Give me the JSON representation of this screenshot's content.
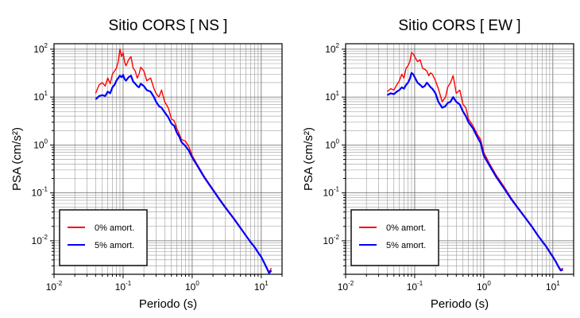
{
  "chart_data": [
    {
      "type": "line",
      "title": "Sitio CORS [ NS ]",
      "xlabel": "Periodo (s)",
      "ylabel": "PSA (cm/s²)",
      "xscale": "log",
      "yscale": "log",
      "xlim": [
        0.01,
        20
      ],
      "ylim": [
        0.002,
        130
      ],
      "grid": true,
      "legend_position": "bottom-left",
      "xticks": [
        {
          "base": "10",
          "exp": "-2"
        },
        {
          "base": "10",
          "exp": "-1"
        },
        {
          "base": "10",
          "exp": "0"
        },
        {
          "base": "10",
          "exp": "1"
        }
      ],
      "yticks": [
        {
          "base": "10",
          "exp": "-2",
          "value": 0.01
        },
        {
          "base": "10",
          "exp": "-1",
          "value": 0.1
        },
        {
          "base": "10",
          "exp": "0",
          "value": 1
        },
        {
          "base": "10",
          "exp": "1",
          "value": 10
        },
        {
          "base": "10",
          "exp": "2",
          "value": 100
        }
      ],
      "series": [
        {
          "name": "0% amort.",
          "color": "#ff0000",
          "x": [
            0.04,
            0.045,
            0.05,
            0.055,
            0.06,
            0.065,
            0.07,
            0.075,
            0.08,
            0.085,
            0.09,
            0.095,
            0.1,
            0.105,
            0.11,
            0.12,
            0.13,
            0.14,
            0.15,
            0.16,
            0.17,
            0.18,
            0.2,
            0.22,
            0.25,
            0.28,
            0.3,
            0.33,
            0.36,
            0.4,
            0.45,
            0.5,
            0.55,
            0.6,
            0.65,
            0.7,
            0.8,
            0.9,
            1.0,
            1.2,
            1.5,
            2.0,
            2.5,
            3.0,
            4.0,
            5.0,
            6.0,
            7.0,
            8.0,
            9.0,
            10.0,
            11.0,
            12.0,
            13.0,
            14.0
          ],
          "y": [
            12,
            18,
            20,
            17,
            25,
            19,
            30,
            35,
            40,
            55,
            100,
            70,
            85,
            55,
            45,
            60,
            70,
            40,
            35,
            25,
            30,
            42,
            35,
            22,
            25,
            15,
            12,
            10,
            14,
            8,
            6,
            3.5,
            3.2,
            2.2,
            1.7,
            1.3,
            1.2,
            0.9,
            0.6,
            0.38,
            0.22,
            0.12,
            0.075,
            0.052,
            0.03,
            0.019,
            0.013,
            0.0095,
            0.0075,
            0.0058,
            0.0047,
            0.0036,
            0.0028,
            0.0022,
            0.0027
          ]
        },
        {
          "name": "5% amort.",
          "color": "#0000ff",
          "x": [
            0.04,
            0.045,
            0.05,
            0.055,
            0.06,
            0.065,
            0.07,
            0.075,
            0.08,
            0.085,
            0.09,
            0.095,
            0.1,
            0.105,
            0.11,
            0.12,
            0.13,
            0.14,
            0.15,
            0.16,
            0.17,
            0.18,
            0.2,
            0.22,
            0.25,
            0.28,
            0.3,
            0.33,
            0.36,
            0.4,
            0.45,
            0.5,
            0.55,
            0.6,
            0.65,
            0.7,
            0.8,
            0.9,
            1.0,
            1.2,
            1.5,
            2.0,
            2.5,
            3.0,
            4.0,
            5.0,
            6.0,
            7.0,
            8.0,
            9.0,
            10.0,
            11.0,
            12.0,
            13.0,
            14.0
          ],
          "y": [
            9,
            10.5,
            11,
            10.5,
            13,
            12,
            16,
            18,
            22,
            25,
            28,
            26,
            29,
            24,
            22,
            26,
            28,
            21,
            19,
            17,
            16,
            19,
            17,
            14,
            13,
            10,
            8,
            6.5,
            6,
            4.8,
            3.8,
            2.8,
            2.5,
            1.8,
            1.5,
            1.15,
            0.95,
            0.75,
            0.55,
            0.36,
            0.21,
            0.115,
            0.072,
            0.05,
            0.029,
            0.0185,
            0.0128,
            0.0094,
            0.0074,
            0.0057,
            0.0046,
            0.0035,
            0.0027,
            0.0021,
            0.0024
          ]
        }
      ]
    },
    {
      "type": "line",
      "title": "Sitio CORS [ EW ]",
      "xlabel": "Periodo (s)",
      "ylabel": "PSA (cm/s²)",
      "xscale": "log",
      "yscale": "log",
      "xlim": [
        0.01,
        20
      ],
      "ylim": [
        0.002,
        130
      ],
      "grid": true,
      "legend_position": "bottom-left",
      "xticks": [
        {
          "base": "10",
          "exp": "-2"
        },
        {
          "base": "10",
          "exp": "-1"
        },
        {
          "base": "10",
          "exp": "0"
        },
        {
          "base": "10",
          "exp": "1"
        }
      ],
      "yticks": [
        {
          "base": "10",
          "exp": "-2",
          "value": 0.01
        },
        {
          "base": "10",
          "exp": "-1",
          "value": 0.1
        },
        {
          "base": "10",
          "exp": "0",
          "value": 1
        },
        {
          "base": "10",
          "exp": "1",
          "value": 10
        },
        {
          "base": "10",
          "exp": "2",
          "value": 100
        }
      ],
      "series": [
        {
          "name": "0% amort.",
          "color": "#ff0000",
          "x": [
            0.04,
            0.045,
            0.05,
            0.055,
            0.06,
            0.065,
            0.07,
            0.075,
            0.08,
            0.085,
            0.09,
            0.095,
            0.1,
            0.11,
            0.12,
            0.13,
            0.14,
            0.15,
            0.16,
            0.17,
            0.18,
            0.2,
            0.22,
            0.25,
            0.28,
            0.3,
            0.33,
            0.36,
            0.4,
            0.45,
            0.5,
            0.55,
            0.6,
            0.7,
            0.8,
            0.9,
            1.0,
            1.2,
            1.5,
            2.0,
            2.5,
            3.0,
            4.0,
            5.0,
            6.0,
            7.0,
            8.0,
            9.0,
            10.0,
            11.0,
            12.0,
            13.0,
            14.0
          ],
          "y": [
            13,
            15,
            14,
            18,
            22,
            30,
            25,
            40,
            45,
            55,
            85,
            80,
            70,
            55,
            60,
            40,
            38,
            35,
            28,
            32,
            30,
            22,
            15,
            8,
            10,
            16,
            20,
            28,
            12,
            14,
            7,
            6,
            3.5,
            2.5,
            1.7,
            1.3,
            0.7,
            0.42,
            0.24,
            0.13,
            0.078,
            0.054,
            0.031,
            0.02,
            0.0135,
            0.01,
            0.0078,
            0.006,
            0.0048,
            0.0038,
            0.003,
            0.0025,
            0.0027
          ]
        },
        {
          "name": "5% amort.",
          "color": "#0000ff",
          "x": [
            0.04,
            0.045,
            0.05,
            0.055,
            0.06,
            0.065,
            0.07,
            0.075,
            0.08,
            0.085,
            0.09,
            0.095,
            0.1,
            0.11,
            0.12,
            0.13,
            0.14,
            0.15,
            0.16,
            0.17,
            0.18,
            0.2,
            0.22,
            0.25,
            0.28,
            0.3,
            0.33,
            0.36,
            0.4,
            0.45,
            0.5,
            0.55,
            0.6,
            0.7,
            0.8,
            0.9,
            1.0,
            1.2,
            1.5,
            2.0,
            2.5,
            3.0,
            4.0,
            5.0,
            6.0,
            7.0,
            8.0,
            9.0,
            10.0,
            11.0,
            12.0,
            13.0,
            14.0
          ],
          "y": [
            11,
            12,
            11.5,
            13,
            14,
            16,
            15,
            18,
            20,
            24,
            32,
            30,
            26,
            20,
            18,
            16,
            17,
            20,
            18,
            16,
            15,
            12,
            8,
            6,
            6.5,
            7.5,
            8,
            10,
            8,
            7,
            5,
            4,
            3,
            2.2,
            1.5,
            1.1,
            0.6,
            0.38,
            0.22,
            0.12,
            0.074,
            0.052,
            0.03,
            0.0195,
            0.0132,
            0.0098,
            0.0076,
            0.0058,
            0.0046,
            0.0037,
            0.0029,
            0.0024,
            0.0025
          ]
        }
      ]
    }
  ]
}
